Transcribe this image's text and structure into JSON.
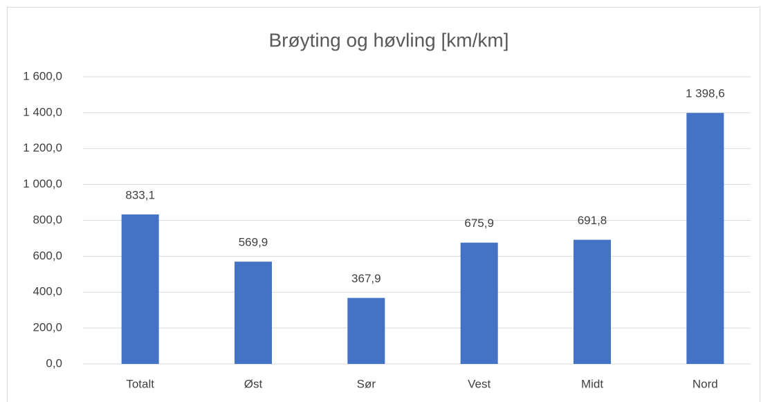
{
  "chart_data": {
    "type": "bar",
    "title": "Brøyting og høvling [km/km]",
    "categories": [
      "Totalt",
      "Øst",
      "Sør",
      "Vest",
      "Midt",
      "Nord"
    ],
    "values": [
      833.1,
      569.9,
      367.9,
      675.9,
      691.8,
      1398.6
    ],
    "value_labels": [
      "833,1",
      "569,9",
      "367,9",
      "675,9",
      "691,8",
      "1 398,6"
    ],
    "color": "#4472c4",
    "ylim": [
      0,
      1600
    ],
    "yticks": [
      {
        "value": 0,
        "label": "0,0"
      },
      {
        "value": 200,
        "label": "200,0"
      },
      {
        "value": 400,
        "label": "400,0"
      },
      {
        "value": 600,
        "label": "600,0"
      },
      {
        "value": 800,
        "label": "800,0"
      },
      {
        "value": 1000,
        "label": "1 000,0"
      },
      {
        "value": 1200,
        "label": "1 200,0"
      },
      {
        "value": 1400,
        "label": "1 400,0"
      },
      {
        "value": 1600,
        "label": "1 600,0"
      }
    ],
    "grid": true
  }
}
